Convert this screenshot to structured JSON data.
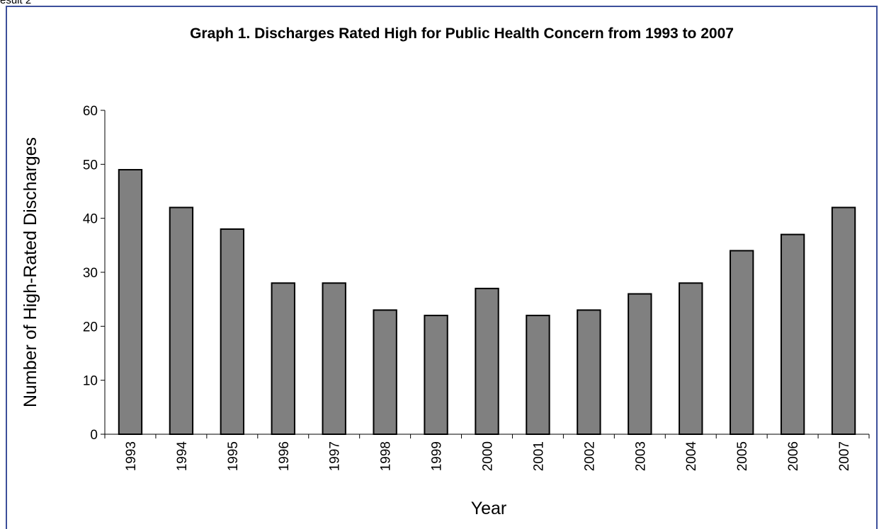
{
  "corner_label": "esult 2",
  "chart_data": {
    "type": "bar",
    "title": "Graph 1.  Discharges Rated High for Public Health Concern from 1993 to 2007",
    "xlabel": "Year",
    "ylabel": "Number of High-Rated Discharges",
    "categories": [
      "1993",
      "1994",
      "1995",
      "1996",
      "1997",
      "1998",
      "1999",
      "2000",
      "2001",
      "2002",
      "2003",
      "2004",
      "2005",
      "2006",
      "2007"
    ],
    "values": [
      49,
      42,
      38,
      28,
      28,
      23,
      22,
      27,
      22,
      23,
      26,
      28,
      34,
      37,
      42
    ],
    "ylim": [
      0,
      60
    ],
    "yticks": [
      0,
      10,
      20,
      30,
      40,
      50,
      60
    ],
    "grid": false,
    "legend": "none",
    "bar_color": "#808080",
    "bar_edge_color": "#000000",
    "frame_color": "#3c4f9a"
  }
}
